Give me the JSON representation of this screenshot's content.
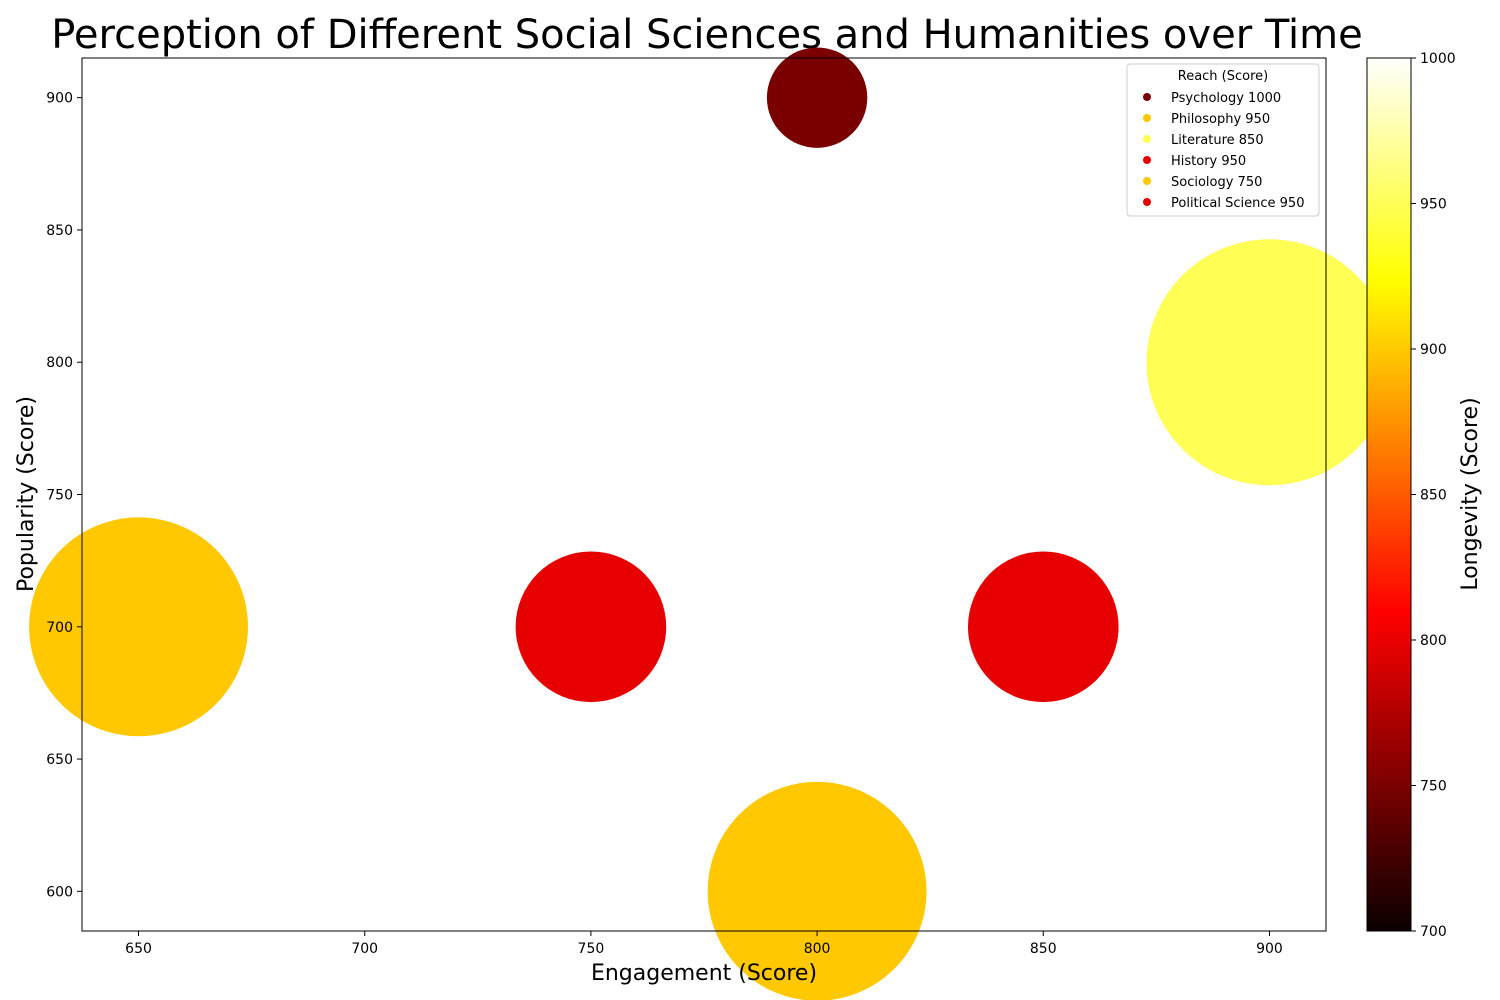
{
  "chart_data": {
    "type": "scatter",
    "title": "Perception of Different Social Sciences and Humanities over Time",
    "xlabel": "Engagement (Score)",
    "ylabel": "Popularity (Score)",
    "xlim": [
      637.5,
      912.5
    ],
    "ylim": [
      585,
      915
    ],
    "xticks": [
      "650",
      "700",
      "750",
      "800",
      "850",
      "900"
    ],
    "yticks": [
      "600",
      "650",
      "700",
      "750",
      "800",
      "850",
      "900"
    ],
    "grid": false,
    "legend": {
      "title": "Reach (Score)",
      "placement": "top-right"
    },
    "colorbar": {
      "label": "Longevity (Score)",
      "range": [
        700,
        1000
      ],
      "ticks": [
        "700",
        "750",
        "800",
        "850",
        "900",
        "950",
        "1000"
      ],
      "colormap": "hot"
    },
    "points": [
      {
        "legend": "Psychology 1000",
        "engagement": 800,
        "popularity": 900,
        "longevity": 750,
        "reach": 1000,
        "color": "#7a0000"
      },
      {
        "legend": "Philosophy 950",
        "engagement": 650,
        "popularity": 700,
        "longevity": 900,
        "reach": 950,
        "color": "#ffc800"
      },
      {
        "legend": "Literature 850",
        "engagement": 900,
        "popularity": 800,
        "longevity": 950,
        "reach": 850,
        "color": "#ffff55"
      },
      {
        "legend": "History 950",
        "engagement": 750,
        "popularity": 700,
        "longevity": 800,
        "reach": 950,
        "color": "#e60000"
      },
      {
        "legend": "Sociology 750",
        "engagement": 800,
        "popularity": 600,
        "longevity": 900,
        "reach": 750,
        "color": "#ffc800"
      },
      {
        "legend": "Political Science 950",
        "engagement": 850,
        "popularity": 700,
        "longevity": 800,
        "reach": 950,
        "color": "#e60000"
      }
    ]
  }
}
